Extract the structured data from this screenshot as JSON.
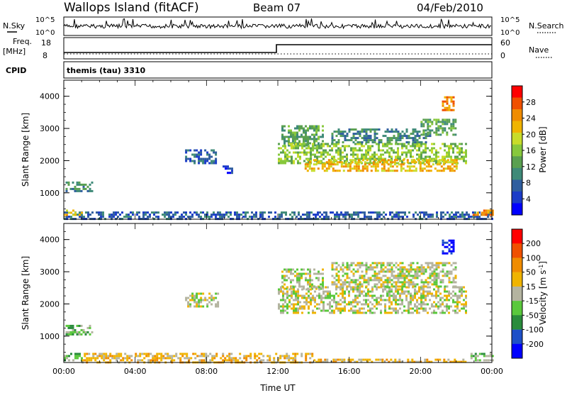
{
  "header": {
    "station": "Wallops Island (fitACF)",
    "beam": "Beam 07",
    "date": "04/Feb/2010"
  },
  "top_panels": {
    "nsky_label": "N.Sky",
    "nsky_ticks": [
      "10^5",
      "10^0"
    ],
    "nsearch_label": "N.Search",
    "nsearch_ticks": [
      "10^5",
      "10^0"
    ],
    "freq_label": "Freq.",
    "freq_unit": "[MHz]",
    "freq_ticks": [
      "18",
      "8"
    ],
    "nave_label": "Nave",
    "nave_ticks": [
      "60",
      "0"
    ],
    "cpid_label": "CPID",
    "cpid_value": "themis (tau) 3310"
  },
  "chart_data": [
    {
      "type": "heatmap",
      "name": "power",
      "ylabel": "Slant Range [km]",
      "ylim": [
        180,
        4500
      ],
      "yticks": [
        "4000",
        "3000",
        "2000",
        "1000"
      ],
      "ytick_values": [
        4000,
        3000,
        2000,
        1000
      ],
      "colorbar": {
        "label": "Power [dB]",
        "ticks": [
          "28",
          "24",
          "20",
          "16",
          "12",
          "8",
          "4"
        ],
        "colors": [
          "#0000ff",
          "#1b3cc8",
          "#2f5e9e",
          "#3f8a78",
          "#5aa050",
          "#87c83c",
          "#c8dc2a",
          "#f0b400",
          "#f08c00",
          "#f05000",
          "#ff0000"
        ]
      },
      "regions": [
        {
          "t0": 0.1,
          "t1": 1.6,
          "r0": 1050,
          "r1": 1350,
          "level": 3
        },
        {
          "t0": 6.8,
          "t1": 8.7,
          "r0": 1950,
          "r1": 2350,
          "level": 2
        },
        {
          "t0": 8.9,
          "t1": 9.4,
          "r0": 1650,
          "r1": 1850,
          "level": 1
        },
        {
          "t0": 12.2,
          "t1": 14.5,
          "r0": 2450,
          "r1": 3100,
          "level": 4
        },
        {
          "t0": 12.0,
          "t1": 22.5,
          "r0": 1900,
          "r1": 2550,
          "level": 5
        },
        {
          "t0": 13.5,
          "t1": 22.0,
          "r0": 1700,
          "r1": 2050,
          "level": 7
        },
        {
          "t0": 15.0,
          "t1": 20.5,
          "r0": 2550,
          "r1": 3000,
          "level": 3
        },
        {
          "t0": 20.0,
          "t1": 22.0,
          "r0": 2800,
          "r1": 3300,
          "level": 4
        },
        {
          "t0": 21.2,
          "t1": 21.9,
          "r0": 3600,
          "r1": 4000,
          "level": 8
        },
        {
          "t0": 0.0,
          "t1": 24.0,
          "r0": 180,
          "r1": 420,
          "level": 2
        },
        {
          "t0": 0.0,
          "t1": 1.0,
          "r0": 300,
          "r1": 480,
          "level": 7
        },
        {
          "t0": 22.8,
          "t1": 24.0,
          "r0": 300,
          "r1": 480,
          "level": 8
        }
      ]
    },
    {
      "type": "heatmap",
      "name": "velocity",
      "ylabel": "Slant Range [km]",
      "xlabel": "Time UT",
      "ylim": [
        180,
        4500
      ],
      "yticks": [
        "4000",
        "3000",
        "2000",
        "1000"
      ],
      "ytick_values": [
        4000,
        3000,
        2000,
        1000
      ],
      "xticks": [
        "00:00",
        "04:00",
        "08:00",
        "12:00",
        "16:00",
        "20:00",
        "00:00"
      ],
      "xlim": [
        0,
        24
      ],
      "colorbar": {
        "label": "Velocity [m s-1]",
        "ticks": [
          "200",
          "100",
          "50",
          "15",
          "-15",
          "-50",
          "-100",
          "-200"
        ],
        "colors": [
          "#0000ff",
          "#1e50c8",
          "#2a8c3c",
          "#5ac83c",
          "#b4b4a0",
          "#f0b400",
          "#f08c00",
          "#f05000",
          "#ff0000"
        ]
      },
      "regions": [
        {
          "t0": 0.1,
          "t1": 1.6,
          "r0": 1050,
          "r1": 1350,
          "level": 3
        },
        {
          "t0": 6.8,
          "t1": 8.7,
          "r0": 1950,
          "r1": 2350,
          "level": 4
        },
        {
          "t0": 12.2,
          "t1": 14.5,
          "r0": 2450,
          "r1": 3100,
          "level": 4
        },
        {
          "t0": 12.0,
          "t1": 22.5,
          "r0": 1700,
          "r1": 2550,
          "level": 4
        },
        {
          "t0": 15.0,
          "t1": 22.0,
          "r0": 2550,
          "r1": 3300,
          "level": 4
        },
        {
          "t0": 21.2,
          "t1": 21.9,
          "r0": 3600,
          "r1": 4000,
          "level": 0
        },
        {
          "t0": 0.0,
          "t1": 1.0,
          "r0": 280,
          "r1": 480,
          "level": 3
        },
        {
          "t0": 1.0,
          "t1": 14.0,
          "r0": 200,
          "r1": 480,
          "level": 5
        },
        {
          "t0": 14.0,
          "t1": 22.5,
          "r0": 180,
          "r1": 300,
          "level": 5
        },
        {
          "t0": 22.8,
          "t1": 24.0,
          "r0": 280,
          "r1": 480,
          "level": 3
        }
      ]
    }
  ],
  "colors": {
    "frame": "#000000",
    "background": "#ffffff"
  }
}
